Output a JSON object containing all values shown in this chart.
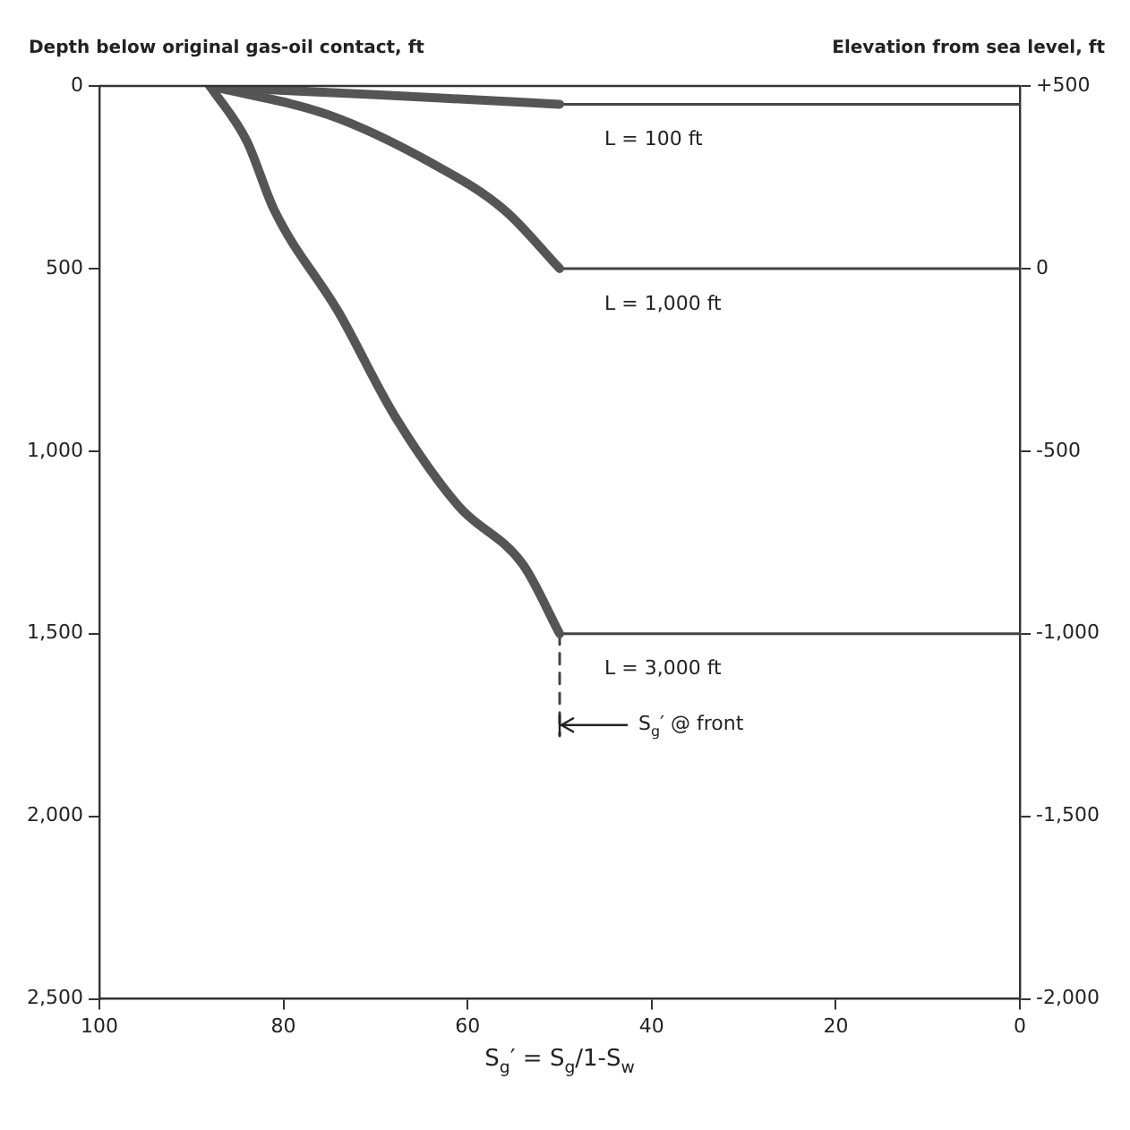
{
  "chart_data": {
    "type": "line",
    "ylabel": "Depth below original gas-oil contact, ft",
    "y2label": "Elevation from sea level, ft",
    "xlabel": "S$_{g}$′ = S$_{g}$/1-S$_{w}$",
    "xlim": [
      100,
      0
    ],
    "xticks": [
      100,
      80,
      60,
      40,
      20,
      0
    ],
    "ylim": [
      2500,
      0
    ],
    "yticks": [
      0,
      500,
      {
        "value": 1000,
        "label": "1,000"
      },
      {
        "value": 1500,
        "label": "1,500"
      },
      {
        "value": 2000,
        "label": "2,000"
      },
      {
        "value": 2500,
        "label": "2,500"
      }
    ],
    "y2lim": [
      -2000,
      500
    ],
    "y2ticks": [
      {
        "value": 500,
        "label": "+500"
      },
      0,
      -500,
      {
        "value": -1000,
        "label": "-1,000"
      },
      {
        "value": -1500,
        "label": "-1,500"
      },
      {
        "value": -2000,
        "label": "-2,000"
      }
    ],
    "grid": false,
    "legend": false,
    "marker": "none",
    "annotations": [
      {
        "text": "S$_{g}$′ @ front",
        "x": 50,
        "y": 1750
      }
    ],
    "series": [
      {
        "name": "L = 100 ft",
        "color": "#555555",
        "x": [
          88,
          80,
          70,
          60,
          50
        ],
        "values": [
          0,
          12,
          24,
          37,
          50
        ]
      },
      {
        "name": "L = 1,000 ft",
        "color": "#555555",
        "x": [
          88,
          75,
          64,
          56,
          50
        ],
        "values": [
          0,
          80,
          210,
          340,
          500
        ]
      },
      {
        "name": "L = 3,000 ft",
        "color": "#555555",
        "x": [
          88,
          84,
          81,
          74,
          68,
          61,
          54,
          50
        ],
        "values": [
          0,
          150,
          340,
          620,
          900,
          1150,
          1310,
          1500
        ]
      },
      {
        "color": "#444444",
        "x": [
          50,
          0
        ],
        "values": [
          50,
          50
        ]
      },
      {
        "color": "#444444",
        "x": [
          50,
          0
        ],
        "values": [
          500,
          500
        ]
      },
      {
        "color": "#444444",
        "x": [
          50,
          0
        ],
        "values": [
          1500,
          1500
        ]
      },
      {
        "color": "#444444",
        "x": [
          50,
          50
        ],
        "values": [
          1500,
          1780
        ],
        "line_style": "dashed"
      }
    ]
  }
}
